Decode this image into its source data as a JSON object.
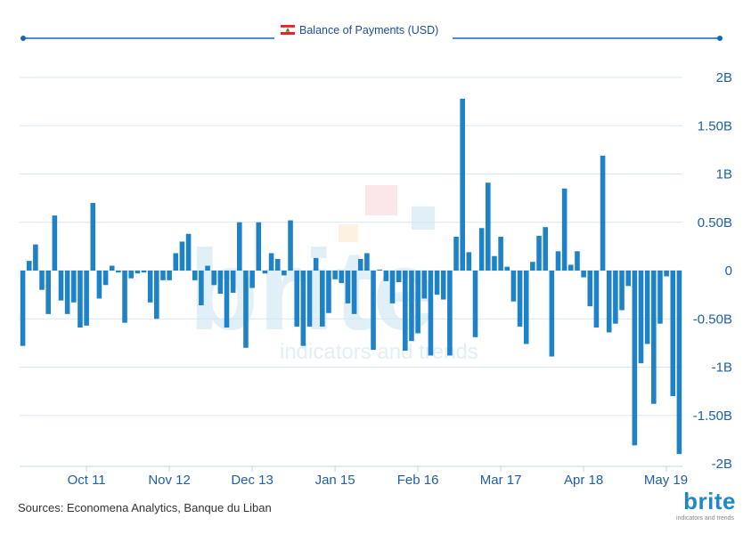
{
  "header": {
    "title": "Balance of Payments (USD)"
  },
  "watermark": {
    "brand": "brite",
    "tagline": "indicators and trends"
  },
  "footer": {
    "sources": "Sources: Economena Analytics, Banque du Liban",
    "brand": "brite",
    "tagline": "indicators and trends"
  },
  "colors": {
    "bar": "#1e82c8",
    "axis_text": "#1f5fa8",
    "line": "#1565c0",
    "grid": "#d8e6f3"
  },
  "chart_data": {
    "type": "bar",
    "title": "Balance of Payments (USD)",
    "xlabel": "",
    "ylabel": "",
    "y_axis_side": "right",
    "ylim": [
      -2000000000,
      2000000000
    ],
    "grid": true,
    "yticks": [
      {
        "value": 2000000000,
        "label": "2B"
      },
      {
        "value": 1500000000,
        "label": "1.50B"
      },
      {
        "value": 1000000000,
        "label": "1B"
      },
      {
        "value": 500000000,
        "label": "0.50B"
      },
      {
        "value": 0,
        "label": "0"
      },
      {
        "value": -500000000,
        "label": "-0.50B"
      },
      {
        "value": -1000000000,
        "label": "-1B"
      },
      {
        "value": -1500000000,
        "label": "-1.50B"
      },
      {
        "value": -2000000000,
        "label": "-2B"
      }
    ],
    "xticks": [
      {
        "index": 10,
        "label": "Oct 11"
      },
      {
        "index": 23,
        "label": "Nov 12"
      },
      {
        "index": 36,
        "label": "Dec 13"
      },
      {
        "index": 49,
        "label": "Jan 15"
      },
      {
        "index": 62,
        "label": "Feb 16"
      },
      {
        "index": 75,
        "label": "Mar 17"
      },
      {
        "index": 88,
        "label": "Apr 18"
      },
      {
        "index": 101,
        "label": "May 19"
      }
    ],
    "series": [
      {
        "values": [
          -780000000,
          100000000,
          270000000,
          -200000000,
          -450000000,
          570000000,
          -310000000,
          -450000000,
          -330000000,
          -590000000,
          -570000000,
          700000000,
          -290000000,
          -150000000,
          50000000,
          -20000000,
          -540000000,
          -80000000,
          -30000000,
          -20000000,
          -330000000,
          -500000000,
          -100000000,
          -100000000,
          180000000,
          300000000,
          380000000,
          -100000000,
          -360000000,
          50000000,
          -150000000,
          -240000000,
          -590000000,
          -230000000,
          500000000,
          -800000000,
          -180000000,
          500000000,
          -30000000,
          180000000,
          120000000,
          -50000000,
          520000000,
          -580000000,
          -780000000,
          -580000000,
          130000000,
          -580000000,
          -440000000,
          -90000000,
          -130000000,
          -340000000,
          -450000000,
          120000000,
          180000000,
          -820000000,
          10000000,
          -110000000,
          -340000000,
          -120000000,
          -830000000,
          -730000000,
          -650000000,
          -290000000,
          -880000000,
          -250000000,
          -300000000,
          -880000000,
          350000000,
          1780000000,
          190000000,
          -690000000,
          440000000,
          910000000,
          150000000,
          350000000,
          40000000,
          -320000000,
          -580000000,
          -760000000,
          90000000,
          360000000,
          450000000,
          -890000000,
          200000000,
          850000000,
          60000000,
          200000000,
          -70000000,
          -370000000,
          -590000000,
          1190000000,
          -640000000,
          -550000000,
          -410000000,
          -160000000,
          -1810000000,
          -960000000,
          -760000000,
          -1380000000,
          -550000000,
          -60000000,
          -1300000000,
          -1900000000
        ]
      }
    ]
  }
}
